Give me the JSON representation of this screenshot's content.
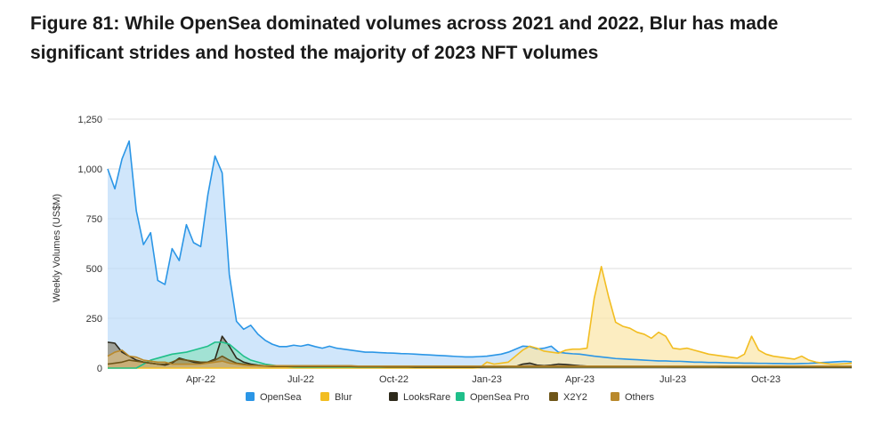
{
  "figure": {
    "title_line1": "Figure 81: While OpenSea dominated volumes across 2021 and 2022, Blur has made",
    "title_line2": "significant strides and hosted the majority of 2023 NFT volumes"
  },
  "chart_data": {
    "type": "area",
    "title": "Figure 81: While OpenSea dominated volumes across 2021 and 2022, Blur has made significant strides and hosted the majority of 2023 NFT volumes",
    "xlabel": "",
    "ylabel": "Weekly Volumes (US$M)",
    "ylim": [
      0,
      1250
    ],
    "yticks": [
      0,
      250,
      500,
      750,
      1000,
      1250
    ],
    "ytick_labels": [
      "0",
      "250",
      "500",
      "750",
      "1,000",
      "1,250"
    ],
    "x_week_count": 105,
    "xticks": [
      {
        "label": "Apr-22",
        "week": 13
      },
      {
        "label": "Jul-22",
        "week": 27
      },
      {
        "label": "Oct-22",
        "week": 40
      },
      {
        "label": "Jan-23",
        "week": 53
      },
      {
        "label": "Apr-23",
        "week": 66
      },
      {
        "label": "Jul-23",
        "week": 79
      },
      {
        "label": "Oct-23",
        "week": 92
      }
    ],
    "grid": true,
    "legend_position": "bottom",
    "series": [
      {
        "name": "OpenSea",
        "color": "#2b96e6",
        "fill": "#bcdcfa",
        "values": [
          1000,
          900,
          1050,
          1140,
          790,
          620,
          680,
          440,
          420,
          600,
          540,
          720,
          630,
          610,
          870,
          1065,
          980,
          470,
          235,
          195,
          215,
          170,
          140,
          120,
          108,
          108,
          115,
          110,
          118,
          108,
          100,
          110,
          100,
          95,
          90,
          85,
          80,
          80,
          78,
          76,
          75,
          73,
          72,
          70,
          68,
          66,
          64,
          62,
          60,
          58,
          56,
          56,
          58,
          60,
          65,
          70,
          80,
          95,
          110,
          108,
          96,
          100,
          110,
          80,
          75,
          72,
          70,
          65,
          60,
          56,
          52,
          48,
          46,
          44,
          42,
          40,
          38,
          36,
          36,
          34,
          34,
          32,
          30,
          30,
          28,
          28,
          27,
          26,
          26,
          25,
          25,
          24,
          24,
          23,
          23,
          22,
          22,
          23,
          24,
          26,
          28,
          30,
          32,
          34,
          32
        ]
      },
      {
        "name": "Blur",
        "color": "#f2bd21",
        "fill": "#fbe6a6",
        "values": [
          0,
          0,
          0,
          0,
          0,
          0,
          0,
          0,
          0,
          0,
          0,
          0,
          0,
          0,
          0,
          0,
          0,
          0,
          0,
          0,
          0,
          0,
          0,
          0,
          0,
          0,
          0,
          0,
          0,
          0,
          0,
          0,
          0,
          0,
          0,
          0,
          0,
          0,
          0,
          0,
          0,
          0,
          0,
          0,
          0,
          0,
          0,
          0,
          0,
          0,
          0,
          0,
          2,
          30,
          20,
          25,
          30,
          60,
          90,
          110,
          100,
          85,
          80,
          75,
          90,
          95,
          95,
          100,
          350,
          510,
          360,
          230,
          210,
          200,
          180,
          170,
          150,
          180,
          160,
          100,
          95,
          100,
          90,
          80,
          70,
          65,
          60,
          55,
          50,
          70,
          160,
          90,
          70,
          60,
          55,
          50,
          45,
          60,
          40,
          30,
          25,
          20,
          20,
          22,
          25
        ]
      },
      {
        "name": "LooksRare",
        "color": "#2e2a1c",
        "fill": "#8c8570",
        "values": [
          130,
          125,
          80,
          60,
          40,
          30,
          25,
          20,
          15,
          25,
          50,
          40,
          30,
          25,
          30,
          45,
          160,
          110,
          50,
          30,
          20,
          15,
          12,
          10,
          10,
          10,
          8,
          8,
          8,
          8,
          7,
          7,
          6,
          6,
          6,
          5,
          5,
          5,
          5,
          5,
          5,
          5,
          5,
          4,
          4,
          4,
          4,
          4,
          4,
          4,
          4,
          4,
          4,
          5,
          5,
          5,
          6,
          8,
          20,
          25,
          15,
          12,
          15,
          20,
          18,
          15,
          12,
          10,
          10,
          8,
          8,
          8,
          8,
          7,
          7,
          6,
          6,
          6,
          6,
          5,
          5,
          5,
          5,
          5,
          5,
          5,
          4,
          4,
          4,
          4,
          4,
          4,
          4,
          4,
          4,
          4,
          4,
          4,
          4,
          4,
          4,
          4,
          4,
          4,
          4
        ]
      },
      {
        "name": "OpenSea Pro",
        "color": "#1fbf8a",
        "fill": "#8fe0c3",
        "values": [
          0,
          0,
          0,
          0,
          0,
          20,
          40,
          50,
          60,
          70,
          75,
          80,
          90,
          100,
          110,
          130,
          130,
          120,
          90,
          60,
          40,
          30,
          20,
          15,
          10,
          8,
          6,
          5,
          5,
          5,
          5,
          5,
          5,
          5,
          5,
          5,
          5,
          5,
          5,
          5,
          5,
          5,
          5,
          5,
          5,
          5,
          5,
          5,
          5,
          5,
          5,
          5,
          5,
          5,
          5,
          5,
          5,
          5,
          5,
          5,
          5,
          5,
          5,
          5,
          5,
          5,
          5,
          5,
          5,
          5,
          5,
          5,
          5,
          5,
          5,
          5,
          5,
          5,
          5,
          5,
          5,
          5,
          5,
          5,
          5,
          5,
          5,
          5,
          5,
          5,
          5,
          5,
          5,
          5,
          5,
          5,
          5,
          5,
          5,
          5,
          5,
          5,
          5,
          5,
          5
        ]
      },
      {
        "name": "X2Y2",
        "color": "#6e5518",
        "fill": "#a78c52",
        "values": [
          20,
          25,
          30,
          40,
          35,
          30,
          25,
          20,
          20,
          30,
          45,
          40,
          35,
          30,
          30,
          40,
          60,
          40,
          25,
          20,
          15,
          12,
          10,
          8,
          8,
          8,
          8,
          8,
          8,
          8,
          8,
          8,
          8,
          8,
          8,
          7,
          7,
          7,
          7,
          6,
          6,
          6,
          6,
          6,
          6,
          6,
          5,
          5,
          5,
          5,
          5,
          5,
          5,
          5,
          5,
          5,
          5,
          5,
          5,
          5,
          5,
          5,
          5,
          5,
          5,
          5,
          5,
          5,
          5,
          5,
          5,
          5,
          5,
          5,
          5,
          5,
          5,
          5,
          5,
          5,
          5,
          5,
          5,
          5,
          5,
          5,
          5,
          5,
          5,
          5,
          5,
          5,
          5,
          5,
          5,
          5,
          5,
          5,
          5,
          5,
          5,
          5,
          5,
          5,
          5
        ]
      },
      {
        "name": "Others",
        "color": "#b9892c",
        "fill": "#d9bb7d",
        "values": [
          60,
          80,
          90,
          60,
          55,
          40,
          35,
          30,
          30,
          20,
          20,
          20,
          20,
          20,
          25,
          30,
          35,
          25,
          20,
          15,
          12,
          12,
          12,
          12,
          12,
          12,
          12,
          12,
          12,
          12,
          12,
          12,
          12,
          12,
          12,
          10,
          10,
          10,
          10,
          10,
          10,
          10,
          10,
          10,
          10,
          10,
          10,
          10,
          10,
          10,
          10,
          10,
          10,
          10,
          10,
          10,
          10,
          10,
          10,
          10,
          10,
          10,
          10,
          10,
          10,
          10,
          10,
          10,
          10,
          10,
          10,
          10,
          10,
          10,
          10,
          10,
          10,
          10,
          10,
          10,
          10,
          10,
          10,
          10,
          10,
          10,
          10,
          10,
          10,
          10,
          10,
          10,
          10,
          10,
          10,
          10,
          10,
          10,
          10,
          10,
          10,
          10,
          10,
          10,
          10
        ]
      }
    ]
  }
}
